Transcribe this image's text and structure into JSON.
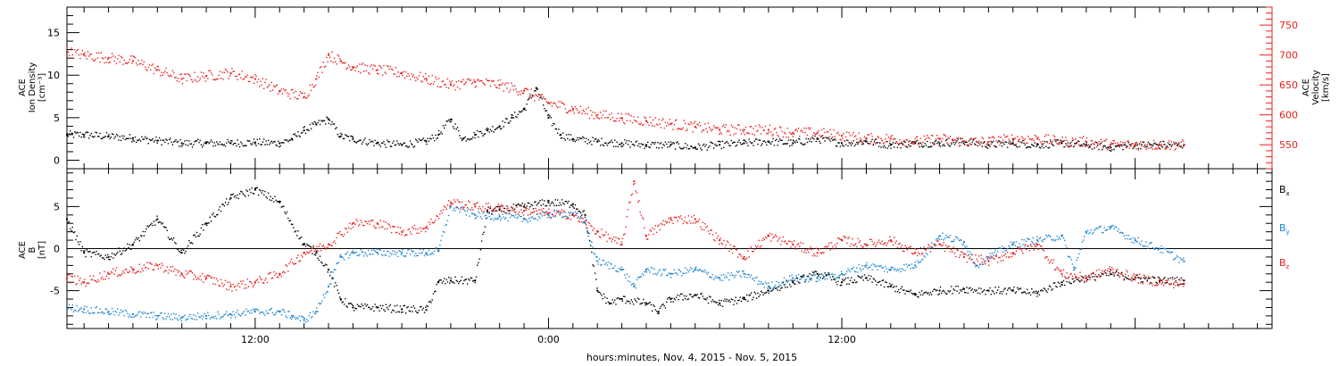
{
  "colors": {
    "black": "#000000",
    "red": "#e8211f",
    "blue": "#1f86d0"
  },
  "chart_data": [
    {
      "type": "scatter",
      "panel": "top",
      "left_axis": {
        "label_lines": [
          "ACE",
          "Ion Density",
          "[cm⁻³]"
        ],
        "ticks": [
          "0",
          "5",
          "10",
          "15"
        ],
        "range": [
          -1,
          18
        ]
      },
      "right_axis": {
        "label_lines": [
          "ACE",
          "Velocity",
          "[km/s]"
        ],
        "ticks": [
          "550",
          "600",
          "650",
          "700",
          "750"
        ],
        "range": [
          510,
          780
        ]
      },
      "x": {
        "range_hours": [
          4.3,
          53.6
        ],
        "tick_labels": [
          "12:00",
          "0:00",
          "12:00"
        ],
        "tick_hours": [
          12,
          24,
          36
        ]
      },
      "series": [
        {
          "color": "black",
          "axis": "left",
          "points": [
            [
              4.3,
              3.0
            ],
            [
              5,
              3.0
            ],
            [
              6,
              2.8
            ],
            [
              7,
              2.6
            ],
            [
              8,
              2.3
            ],
            [
              9,
              2.0
            ],
            [
              10,
              2.0
            ],
            [
              11,
              2.0
            ],
            [
              12,
              2.1
            ],
            [
              13,
              2.0
            ],
            [
              13.5,
              2.5
            ],
            [
              14,
              3.5
            ],
            [
              14.5,
              4.2
            ],
            [
              15,
              4.8
            ],
            [
              15.5,
              2.8
            ],
            [
              16,
              2.5
            ],
            [
              17,
              2.0
            ],
            [
              18,
              1.8
            ],
            [
              19,
              2.2
            ],
            [
              19.5,
              3.0
            ],
            [
              20,
              4.8
            ],
            [
              20.5,
              2.5
            ],
            [
              21,
              3.0
            ],
            [
              21.5,
              3.5
            ],
            [
              22,
              4.0
            ],
            [
              22.5,
              5.0
            ],
            [
              23,
              6.0
            ],
            [
              23.5,
              8.5
            ],
            [
              24,
              5.0
            ],
            [
              24.5,
              3.0
            ],
            [
              25,
              2.5
            ],
            [
              26,
              2.2
            ],
            [
              27,
              2.0
            ],
            [
              28,
              1.8
            ],
            [
              29,
              1.8
            ],
            [
              30,
              1.5
            ],
            [
              31,
              1.8
            ],
            [
              32,
              2.0
            ],
            [
              33,
              2.2
            ],
            [
              34,
              2.0
            ],
            [
              35,
              2.5
            ],
            [
              36,
              2.0
            ],
            [
              37,
              2.2
            ],
            [
              38,
              1.8
            ],
            [
              39,
              2.0
            ],
            [
              40,
              2.0
            ],
            [
              41,
              2.2
            ],
            [
              42,
              1.8
            ],
            [
              43,
              2.0
            ],
            [
              44,
              1.8
            ],
            [
              45,
              2.0
            ],
            [
              46,
              1.8
            ],
            [
              47,
              1.5
            ],
            [
              48,
              1.8
            ],
            [
              49,
              1.8
            ],
            [
              50,
              1.8
            ]
          ]
        },
        {
          "color": "red",
          "axis": "right",
          "points": [
            [
              4.3,
              705
            ],
            [
              5,
              700
            ],
            [
              6,
              695
            ],
            [
              7,
              690
            ],
            [
              8,
              675
            ],
            [
              9,
              660
            ],
            [
              10,
              665
            ],
            [
              11,
              670
            ],
            [
              12,
              660
            ],
            [
              13,
              640
            ],
            [
              14,
              630
            ],
            [
              14.5,
              660
            ],
            [
              15,
              700
            ],
            [
              15.5,
              690
            ],
            [
              16,
              680
            ],
            [
              17,
              675
            ],
            [
              18,
              670
            ],
            [
              19,
              660
            ],
            [
              20,
              650
            ],
            [
              21,
              655
            ],
            [
              22,
              650
            ],
            [
              23,
              640
            ],
            [
              24,
              620
            ],
            [
              25,
              610
            ],
            [
              26,
              600
            ],
            [
              27,
              595
            ],
            [
              28,
              590
            ],
            [
              29,
              585
            ],
            [
              30,
              580
            ],
            [
              31,
              575
            ],
            [
              32,
              575
            ],
            [
              33,
              575
            ],
            [
              34,
              570
            ],
            [
              35,
              570
            ],
            [
              36,
              565
            ],
            [
              37,
              560
            ],
            [
              38,
              560
            ],
            [
              39,
              555
            ],
            [
              40,
              560
            ],
            [
              41,
              555
            ],
            [
              42,
              555
            ],
            [
              43,
              560
            ],
            [
              44,
              560
            ],
            [
              45,
              555
            ],
            [
              46,
              555
            ],
            [
              47,
              550
            ],
            [
              48,
              550
            ],
            [
              49,
              550
            ],
            [
              50,
              550
            ]
          ]
        }
      ]
    },
    {
      "type": "scatter",
      "panel": "bottom",
      "left_axis": {
        "label_lines": [
          "ACE",
          "B",
          "[nT]"
        ],
        "ticks": [
          "-5",
          "0",
          "5"
        ],
        "range": [
          -9.5,
          9.5
        ]
      },
      "x": {
        "range_hours": [
          4.3,
          53.6
        ],
        "xlabel": "hours:minutes, Nov.  4, 2015 - Nov.  5, 2015"
      },
      "legend": [
        {
          "label": "B",
          "sub": "x",
          "color": "black"
        },
        {
          "label": "B",
          "sub": "y",
          "color": "blue"
        },
        {
          "label": "B",
          "sub": "z",
          "color": "red"
        }
      ],
      "series": [
        {
          "name": "Bx",
          "color": "black",
          "points": [
            [
              4.3,
              3.5
            ],
            [
              5,
              -0.5
            ],
            [
              6,
              -1.0
            ],
            [
              7,
              0.5
            ],
            [
              8,
              3.5
            ],
            [
              9,
              -0.5
            ],
            [
              10,
              3.0
            ],
            [
              11,
              6.0
            ],
            [
              12,
              7.0
            ],
            [
              13,
              5.5
            ],
            [
              14,
              0.5
            ],
            [
              14.5,
              -0.5
            ],
            [
              15,
              -2.5
            ],
            [
              15.5,
              -6.0
            ],
            [
              16,
              -7.0
            ],
            [
              17,
              -7.0
            ],
            [
              18,
              -7.2
            ],
            [
              19,
              -7.3
            ],
            [
              19.5,
              -4.0
            ],
            [
              20,
              -3.8
            ],
            [
              21,
              -3.8
            ],
            [
              21.5,
              4.5
            ],
            [
              22,
              4.6
            ],
            [
              23,
              5.0
            ],
            [
              24,
              5.5
            ],
            [
              25,
              5.3
            ],
            [
              25.5,
              4.0
            ],
            [
              26,
              -5.0
            ],
            [
              26.5,
              -6.5
            ],
            [
              27,
              -6.0
            ],
            [
              28,
              -6.5
            ],
            [
              28.5,
              -7.5
            ],
            [
              29,
              -6.0
            ],
            [
              30,
              -5.5
            ],
            [
              31,
              -6.5
            ],
            [
              32,
              -6.0
            ],
            [
              33,
              -5.0
            ],
            [
              34,
              -4.0
            ],
            [
              35,
              -3.0
            ],
            [
              36,
              -4.0
            ],
            [
              37,
              -3.5
            ],
            [
              38,
              -4.5
            ],
            [
              39,
              -5.5
            ],
            [
              40,
              -5.0
            ],
            [
              41,
              -4.8
            ],
            [
              42,
              -5.0
            ],
            [
              43,
              -5.0
            ],
            [
              44,
              -5.3
            ],
            [
              45,
              -4.0
            ],
            [
              46,
              -3.5
            ],
            [
              47,
              -3.0
            ],
            [
              48,
              -3.5
            ],
            [
              49,
              -3.8
            ],
            [
              50,
              -3.8
            ]
          ]
        },
        {
          "name": "By",
          "color": "blue",
          "points": [
            [
              4.3,
              -7.0
            ],
            [
              5,
              -7.2
            ],
            [
              6,
              -7.5
            ],
            [
              7,
              -7.8
            ],
            [
              8,
              -8.0
            ],
            [
              9,
              -8.2
            ],
            [
              10,
              -8.0
            ],
            [
              11,
              -7.8
            ],
            [
              12,
              -7.5
            ],
            [
              13,
              -7.5
            ],
            [
              13.5,
              -8.0
            ],
            [
              14,
              -8.5
            ],
            [
              14.5,
              -7.5
            ],
            [
              15,
              -4.5
            ],
            [
              15.5,
              -1.0
            ],
            [
              16,
              -0.5
            ],
            [
              17,
              -0.5
            ],
            [
              18,
              -0.5
            ],
            [
              19,
              -0.5
            ],
            [
              19.5,
              -0.3
            ],
            [
              20,
              5.0
            ],
            [
              21,
              4.0
            ],
            [
              22,
              3.8
            ],
            [
              23,
              3.5
            ],
            [
              24,
              4.0
            ],
            [
              25,
              4.2
            ],
            [
              25.5,
              3.0
            ],
            [
              26,
              -1.5
            ],
            [
              27,
              -2.5
            ],
            [
              27.5,
              -4.5
            ],
            [
              28,
              -2.5
            ],
            [
              29,
              -3.0
            ],
            [
              30,
              -2.5
            ],
            [
              31,
              -3.5
            ],
            [
              32,
              -3.0
            ],
            [
              33,
              -4.5
            ],
            [
              34,
              -3.5
            ],
            [
              35,
              -3.5
            ],
            [
              36,
              -3.0
            ],
            [
              37,
              -2.0
            ],
            [
              38,
              -2.5
            ],
            [
              39,
              -2.0
            ],
            [
              40,
              1.5
            ],
            [
              41,
              0.8
            ],
            [
              41.5,
              -2.0
            ],
            [
              42,
              -1.0
            ],
            [
              43,
              0.5
            ],
            [
              44,
              1.0
            ],
            [
              45,
              1.5
            ],
            [
              45.5,
              -2.5
            ],
            [
              46,
              2.0
            ],
            [
              47,
              2.5
            ],
            [
              48,
              1.0
            ],
            [
              49,
              0.0
            ],
            [
              50,
              -1.5
            ]
          ]
        },
        {
          "name": "Bz",
          "color": "red",
          "points": [
            [
              4.3,
              -3.5
            ],
            [
              5,
              -4.0
            ],
            [
              6,
              -3.0
            ],
            [
              7,
              -2.5
            ],
            [
              8,
              -2.0
            ],
            [
              9,
              -3.0
            ],
            [
              10,
              -3.5
            ],
            [
              11,
              -4.5
            ],
            [
              12,
              -4.0
            ],
            [
              13,
              -3.0
            ],
            [
              14,
              -0.5
            ],
            [
              15,
              0.5
            ],
            [
              16,
              3.0
            ],
            [
              17,
              3.0
            ],
            [
              18,
              2.0
            ],
            [
              19,
              2.5
            ],
            [
              20,
              5.5
            ],
            [
              21,
              5.0
            ],
            [
              22,
              4.8
            ],
            [
              23,
              4.5
            ],
            [
              24,
              4.2
            ],
            [
              25,
              4.0
            ],
            [
              26,
              2.0
            ],
            [
              27,
              0.5
            ],
            [
              27.5,
              8.0
            ],
            [
              28,
              1.5
            ],
            [
              29,
              3.5
            ],
            [
              30,
              3.5
            ],
            [
              31,
              1.0
            ],
            [
              32,
              -1.0
            ],
            [
              33,
              1.5
            ],
            [
              34,
              0.5
            ],
            [
              35,
              -0.5
            ],
            [
              36,
              1.0
            ],
            [
              37,
              0.5
            ],
            [
              38,
              1.0
            ],
            [
              39,
              -0.5
            ],
            [
              40,
              0.5
            ],
            [
              41,
              -1.0
            ],
            [
              42,
              -1.5
            ],
            [
              43,
              -0.5
            ],
            [
              44,
              0.5
            ],
            [
              45,
              -3.0
            ],
            [
              46,
              -3.5
            ],
            [
              47,
              -2.5
            ],
            [
              48,
              -3.5
            ],
            [
              49,
              -4.0
            ],
            [
              50,
              -4.2
            ]
          ]
        }
      ]
    }
  ]
}
